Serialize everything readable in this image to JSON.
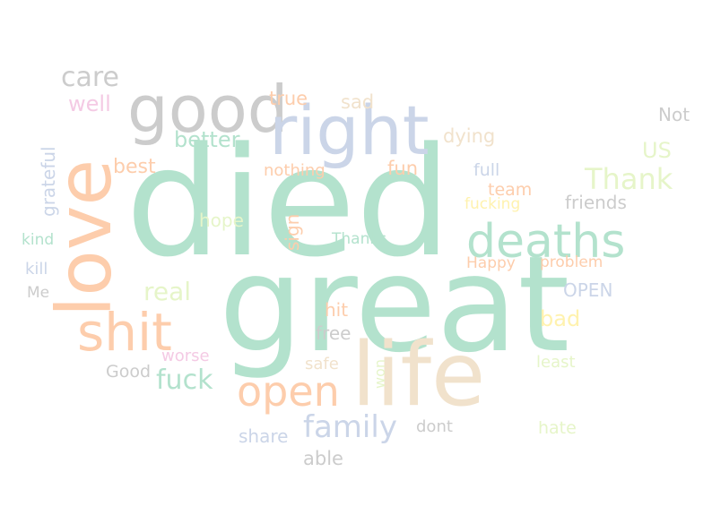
{
  "palette": {
    "mint": "#b3e2cd",
    "peach": "#fdcdac",
    "lavender": "#cbd5e8",
    "pink": "#f4cae4",
    "lime": "#e6f5c9",
    "yellow": "#fff2ae",
    "tan": "#f1e2cc",
    "gray": "#cccccc"
  },
  "words": {
    "died": "died",
    "great": "great",
    "life": "life",
    "love": "love",
    "good": "good",
    "right": "right",
    "deaths": "deaths",
    "shit": "shit",
    "open": "open",
    "family": "family",
    "care": "care",
    "thank": "Thank",
    "fuck": "fuck",
    "real": "real",
    "better": "better",
    "best": "best",
    "well": "well",
    "true": "true",
    "sad": "sad",
    "dying": "dying",
    "us": "US",
    "not": "Not",
    "grateful": "grateful",
    "nothing": "nothing",
    "fun": "fun",
    "full": "full",
    "team": "team",
    "fucking": "fucking",
    "friends": "friends",
    "hope": "hope",
    "sign": "sign",
    "thanks": "Thanks",
    "kind": "kind",
    "kill": "kill",
    "happy": "Happy",
    "problem": "problem",
    "me": "Me",
    "open_caps": "OPEN",
    "bad": "bad",
    "hit": "hit",
    "free": "free",
    "worse": "worse",
    "good_cap": "Good",
    "safe": "safe",
    "least": "least",
    "won": "won",
    "share": "share",
    "dont": "dont",
    "hate": "hate",
    "able": "able"
  }
}
